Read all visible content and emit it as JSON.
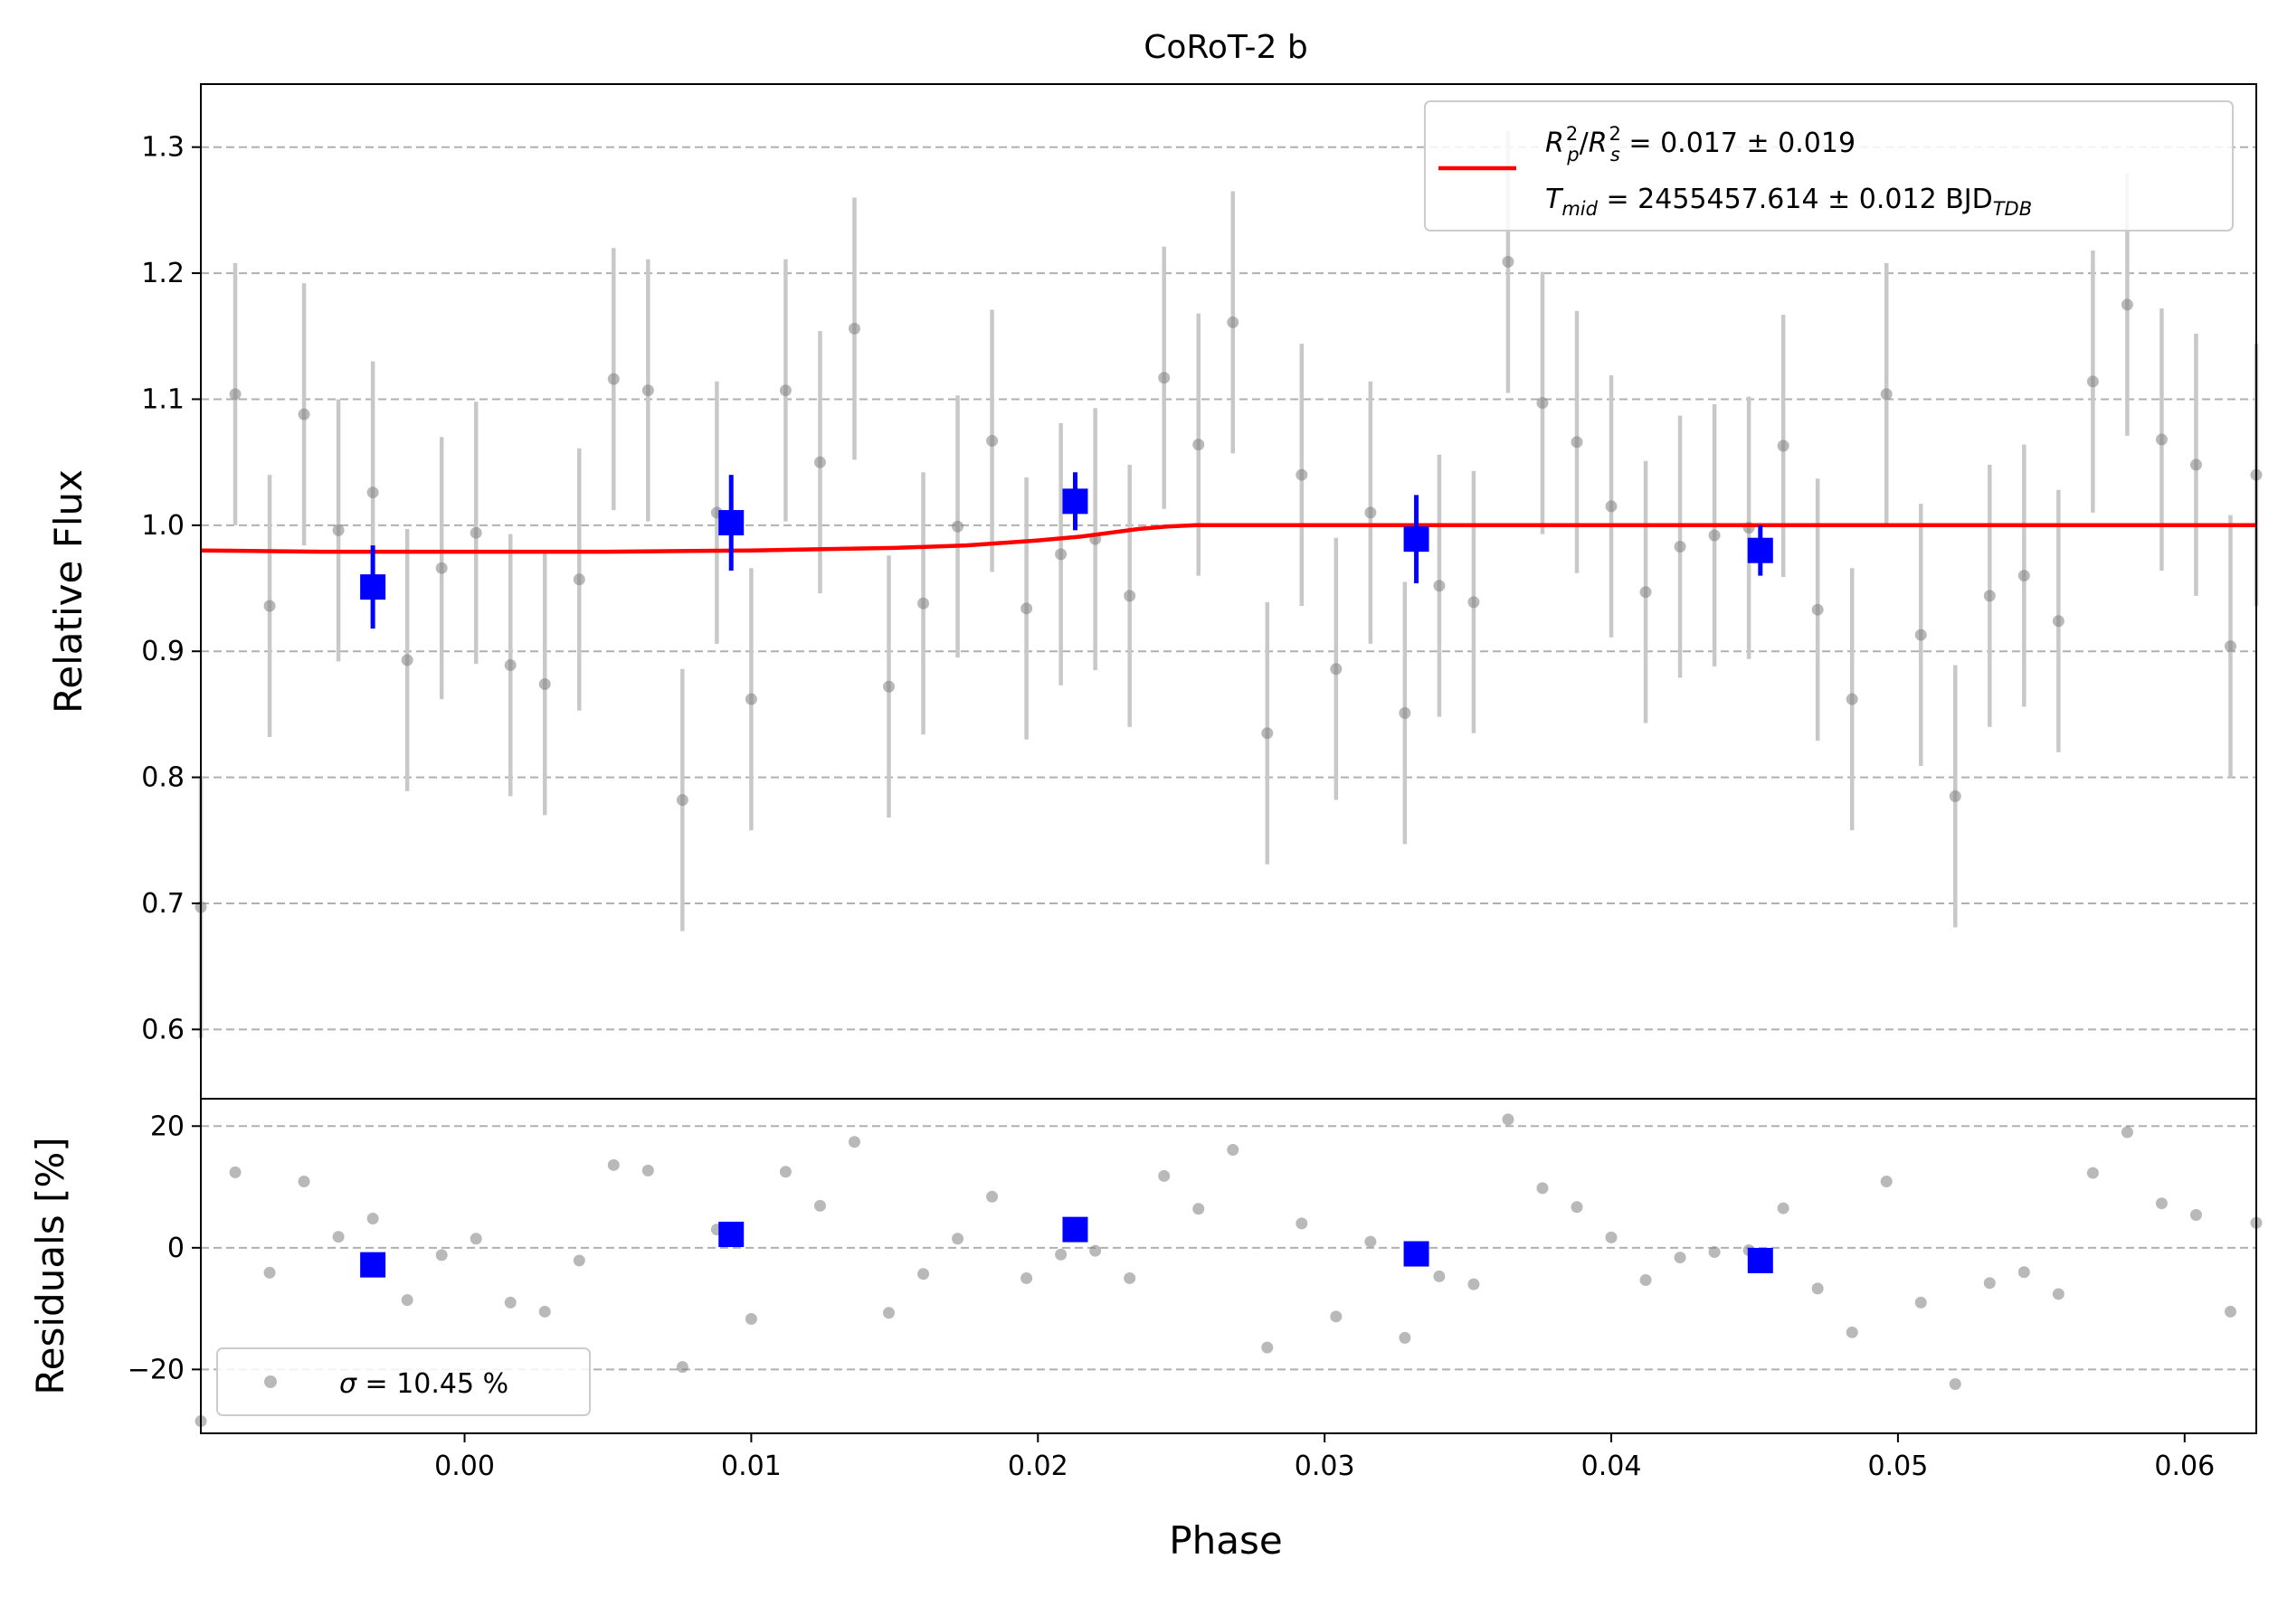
{
  "chart_data": [
    {
      "panel": "top",
      "type": "scatter",
      "title": "CoRoT-2 b",
      "ylabel": "Relative Flux",
      "xlim": [
        -0.0092,
        0.0625
      ],
      "ylim": [
        0.545,
        1.35
      ],
      "yticks": [
        0.6,
        0.7,
        0.8,
        0.9,
        1.0,
        1.1,
        1.2,
        1.3
      ],
      "ytick_labels": [
        "0.6",
        "0.7",
        "0.8",
        "0.9",
        "1.0",
        "1.1",
        "1.2",
        "1.3"
      ],
      "grid": "horizontal dashed",
      "colors": {
        "raw": "#808080",
        "errorbar": "#c8c8c8",
        "binned": "#0000ff",
        "model": "#ff0000"
      },
      "legend": {
        "placement": "top-right",
        "line1_text": "R_p^2/R_s^2 = 0.017 ± 0.019",
        "line2_text": "T_mid = 2455457.614 ± 0.012 BJD_TDB",
        "parts": {
          "rp": "R",
          "rp_sup": "2",
          "rp_sub": "p",
          "slash": "/",
          "rs": "R",
          "rs_sup": "2",
          "rs_sub": "s",
          "rp_rest": " = 0.017 ± 0.019",
          "t": "T",
          "t_sub": "mid",
          "t_rest": " = 2455457.614 ± 0.012 BJD",
          "bjd_sub": "TDB"
        }
      },
      "series": [
        {
          "name": "raw",
          "x": [
            -0.0092,
            -0.008,
            -0.0068,
            -0.0056,
            -0.0044,
            -0.0032,
            -0.002,
            -0.0008,
            0.0004,
            0.0016,
            0.0028,
            0.004,
            0.0052,
            0.0064,
            0.0076,
            0.0088,
            0.01,
            0.0112,
            0.0124,
            0.0136,
            0.0148,
            0.016,
            0.0172,
            0.0184,
            0.0196,
            0.0208,
            0.022,
            0.0232,
            0.0244,
            0.0256,
            0.0268,
            0.028,
            0.0292,
            0.0304,
            0.0316,
            0.0328,
            0.034,
            0.0352,
            0.0364,
            0.0376,
            0.0388,
            0.04,
            0.0412,
            0.0424,
            0.0436,
            0.0448,
            0.046,
            0.0472,
            0.0484,
            0.0496,
            0.0508,
            0.052,
            0.0532,
            0.0544,
            0.0556,
            0.0568,
            0.058,
            0.0592,
            0.0604,
            0.0616,
            0.0625
          ],
          "y": [
            0.697,
            1.104,
            0.936,
            1.088,
            0.996,
            1.026,
            0.893,
            0.966,
            0.994,
            0.889,
            0.874,
            0.957,
            1.116,
            1.107,
            0.782,
            1.01,
            0.862,
            1.107,
            1.05,
            1.156,
            0.872,
            0.938,
            0.999,
            1.067,
            0.934,
            0.977,
            0.989,
            0.944,
            1.117,
            1.064,
            1.161,
            0.835,
            1.04,
            0.886,
            1.01,
            0.851,
            0.952,
            0.939,
            1.209,
            1.097,
            1.066,
            1.015,
            0.947,
            0.983,
            0.992,
            0.998,
            1.063,
            0.933,
            0.862,
            1.104,
            0.913,
            0.785,
            0.944,
            0.96,
            0.924,
            1.114,
            1.175,
            1.068,
            1.048,
            0.904,
            1.04
          ],
          "yerr": 0.104
        },
        {
          "name": "binned",
          "x": [
            -0.0032,
            0.0093,
            0.0213,
            0.0332,
            0.0452
          ],
          "y": [
            0.951,
            1.002,
            1.019,
            0.989,
            0.98
          ],
          "yerr": [
            0.033,
            0.038,
            0.023,
            0.035,
            0.02
          ]
        },
        {
          "name": "model",
          "x": [
            -0.0092,
            -0.005,
            0.0,
            0.005,
            0.01,
            0.015,
            0.0175,
            0.02,
            0.0215,
            0.0225,
            0.0235,
            0.0245,
            0.0255,
            0.026,
            0.03,
            0.04,
            0.05,
            0.0625
          ],
          "y": [
            0.98,
            0.979,
            0.979,
            0.979,
            0.98,
            0.982,
            0.984,
            0.988,
            0.991,
            0.994,
            0.997,
            0.999,
            1.0,
            1.0,
            1.0,
            1.0,
            1.0,
            1.0
          ]
        }
      ]
    },
    {
      "panel": "bottom",
      "type": "scatter",
      "xlabel": "Phase",
      "ylabel": "Residuals [%]",
      "xlim": [
        -0.0092,
        0.0625
      ],
      "ylim": [
        -30.5,
        24.5
      ],
      "xticks": [
        0.0,
        0.01,
        0.02,
        0.03,
        0.04,
        0.05,
        0.06
      ],
      "xtick_labels": [
        "0.00",
        "0.01",
        "0.02",
        "0.03",
        "0.04",
        "0.05",
        "0.06"
      ],
      "yticks": [
        -20,
        0,
        20
      ],
      "ytick_labels": [
        "−20",
        "0",
        "20"
      ],
      "grid": "horizontal dashed",
      "legend": {
        "placement": "bottom-left",
        "sigma_symbol": "σ",
        "sigma_rest": " = 10.45 %"
      },
      "series": [
        {
          "name": "raw",
          "x": [
            -0.0092,
            -0.008,
            -0.0068,
            -0.0056,
            -0.0044,
            -0.0032,
            -0.002,
            -0.0008,
            0.0004,
            0.0016,
            0.0028,
            0.004,
            0.0052,
            0.0064,
            0.0076,
            0.0088,
            0.01,
            0.0112,
            0.0124,
            0.0136,
            0.0148,
            0.016,
            0.0172,
            0.0184,
            0.0196,
            0.0208,
            0.022,
            0.0232,
            0.0244,
            0.0256,
            0.0268,
            0.028,
            0.0292,
            0.0304,
            0.0316,
            0.0328,
            0.034,
            0.0352,
            0.0364,
            0.0376,
            0.0388,
            0.04,
            0.0412,
            0.0424,
            0.0436,
            0.0448,
            0.046,
            0.0472,
            0.0484,
            0.0496,
            0.0508,
            0.052,
            0.0532,
            0.0544,
            0.0556,
            0.0568,
            0.058,
            0.0592,
            0.0604,
            0.0616,
            0.0625
          ],
          "y": [
            -28.5,
            12.4,
            -4.1,
            10.9,
            1.8,
            4.8,
            -8.6,
            -1.2,
            1.5,
            -9.0,
            -10.5,
            -2.1,
            13.6,
            12.7,
            -19.6,
            3.0,
            -11.7,
            12.5,
            6.9,
            17.4,
            -10.7,
            -4.3,
            1.5,
            8.4,
            -5.0,
            -1.1,
            -0.5,
            -5.0,
            11.8,
            6.4,
            16.1,
            -16.4,
            4.0,
            -11.3,
            1.0,
            -14.8,
            -4.7,
            -6.0,
            21.1,
            9.8,
            6.7,
            1.7,
            -5.3,
            -1.6,
            -0.7,
            -0.4,
            6.5,
            -6.7,
            -13.9,
            10.9,
            -9.0,
            -22.4,
            -5.8,
            -4.0,
            -7.6,
            12.3,
            19.0,
            7.3,
            5.4,
            -10.5,
            4.1
          ]
        },
        {
          "name": "binned",
          "x": [
            -0.0032,
            0.0093,
            0.0213,
            0.0332,
            0.0452
          ],
          "y": [
            -2.8,
            2.2,
            3.0,
            -1.0,
            -2.1
          ]
        }
      ]
    }
  ]
}
